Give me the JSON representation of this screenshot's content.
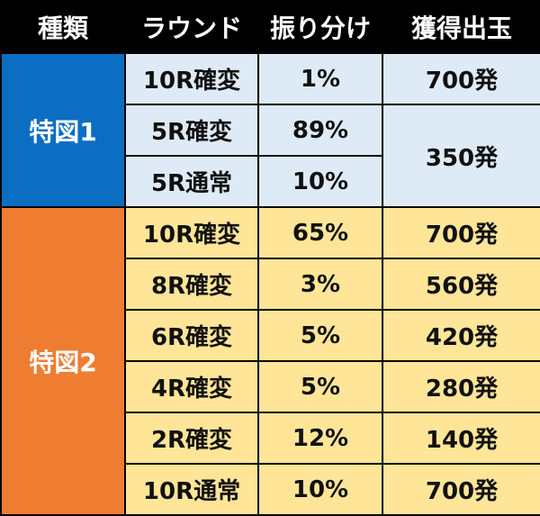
{
  "headers": {
    "type": "種類",
    "round": "ラウンド",
    "allocation": "振り分け",
    "payout": "獲得出玉"
  },
  "colors": {
    "header_bg": "#000000",
    "kind1_bg": "#0b6ec2",
    "kind1_rows_bg": "#deebf7",
    "kind2_bg": "#ee7d32",
    "kind2_rows_bg": "#ffe598"
  },
  "kind1": {
    "label": "特図1",
    "rows": [
      {
        "round": "10R確変",
        "allocation": "1%",
        "payout": "700発"
      },
      {
        "round": "5R確変",
        "allocation": "89%",
        "payout": "350発"
      },
      {
        "round": "5R通常",
        "allocation": "10%"
      }
    ]
  },
  "kind2": {
    "label": "特図2",
    "rows": [
      {
        "round": "10R確変",
        "allocation": "65%",
        "payout": "700発"
      },
      {
        "round": "8R確変",
        "allocation": "3%",
        "payout": "560発"
      },
      {
        "round": "6R確変",
        "allocation": "5%",
        "payout": "420発"
      },
      {
        "round": "4R確変",
        "allocation": "5%",
        "payout": "280発"
      },
      {
        "round": "2R確変",
        "allocation": "12%",
        "payout": "140発"
      },
      {
        "round": "10R通常",
        "allocation": "10%",
        "payout": "700発"
      }
    ]
  }
}
